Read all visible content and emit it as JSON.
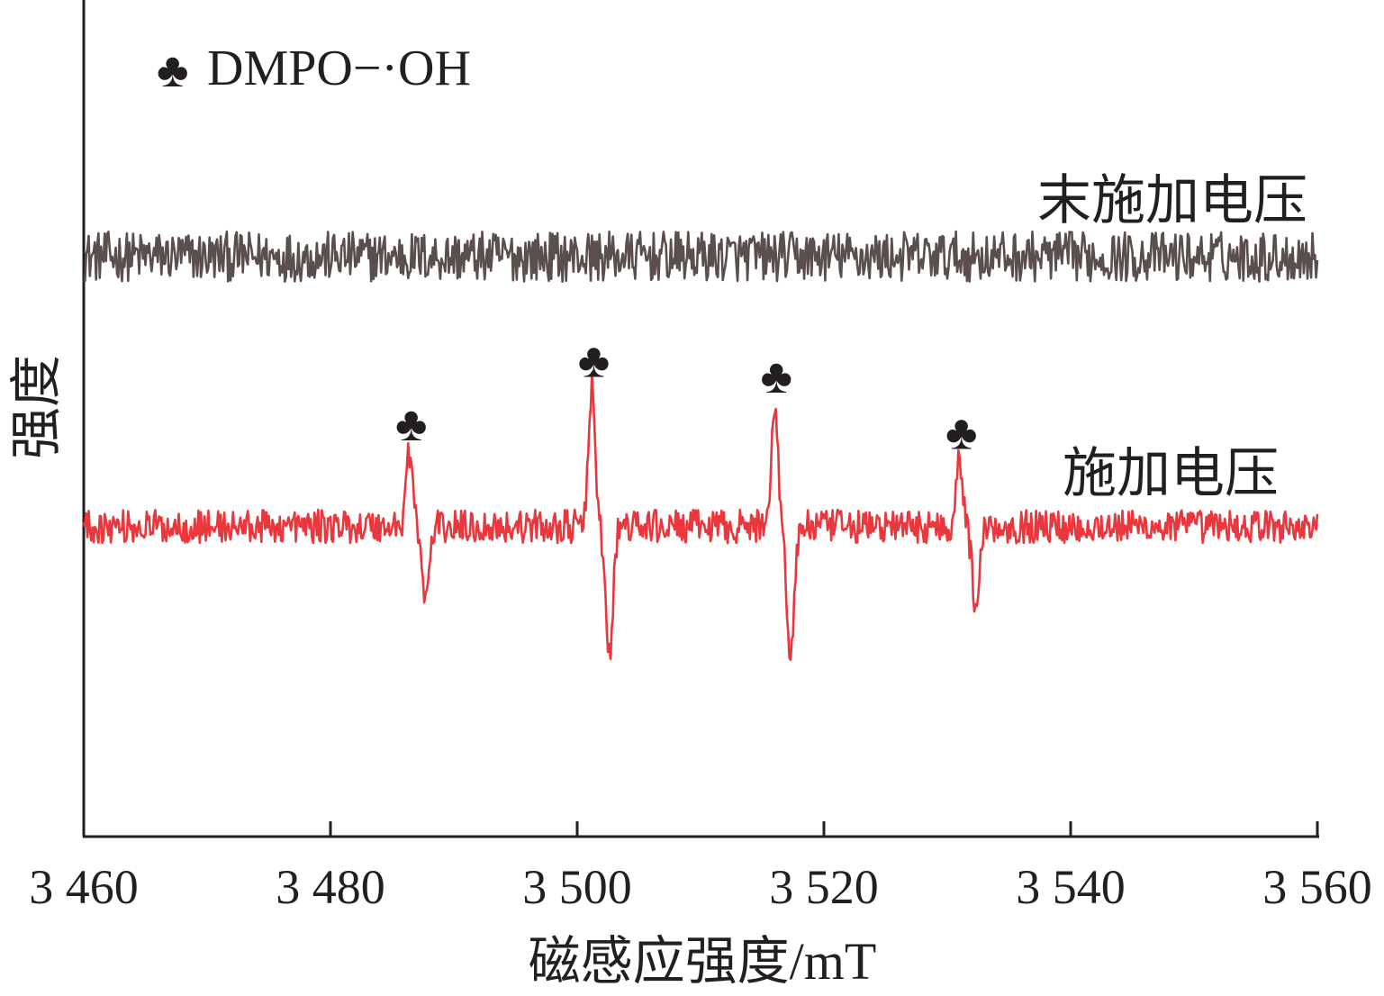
{
  "chart_data": {
    "type": "line",
    "title": "",
    "xlabel": "磁感应强度/mT",
    "ylabel": "强度",
    "xlim": [
      3460,
      3560
    ],
    "ylim": [
      0,
      100
    ],
    "y_units": "arbitrary",
    "grid": false,
    "x_ticks": [
      3460,
      3480,
      3500,
      3520,
      3540,
      3560
    ],
    "x_tick_labels": [
      "3 460",
      "3 480",
      "3 500",
      "3 520",
      "3 540",
      "3 560"
    ],
    "legend": {
      "position": "top-left",
      "marker": "♣",
      "label": "DMPO−·OH"
    },
    "series": [
      {
        "name": "末施加电压",
        "color": "#5a4f4c",
        "baseline": 69.3,
        "noise_amplitude": 3.0,
        "peaks": []
      },
      {
        "name": "施加电压",
        "color": "#e8373d",
        "baseline": 37.0,
        "noise_amplitude": 2.0,
        "peaks": [
          {
            "max_x": 3486.4,
            "max_y": 46.0,
            "min_x": 3487.7,
            "min_y": 28.3,
            "marker": "♣"
          },
          {
            "max_x": 3501.2,
            "max_y": 53.6,
            "min_x": 3502.6,
            "min_y": 21.3,
            "marker": "♣"
          },
          {
            "max_x": 3516.0,
            "max_y": 51.7,
            "min_x": 3517.3,
            "min_y": 21.9,
            "marker": "♣"
          },
          {
            "max_x": 3531.0,
            "max_y": 45.0,
            "min_x": 3532.3,
            "min_y": 28.0,
            "marker": "♣"
          }
        ]
      }
    ]
  }
}
